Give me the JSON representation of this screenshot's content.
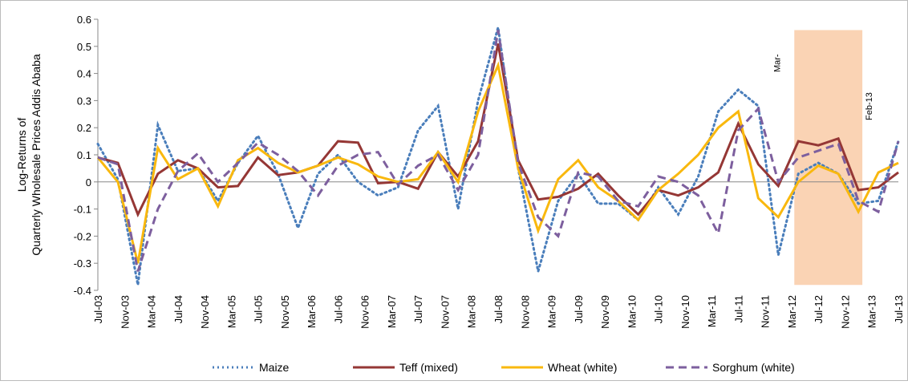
{
  "chart_data": {
    "type": "line",
    "ylabel": [
      "Log-Returns of",
      "Quarterly Wholesale Prices Addis Ababa"
    ],
    "x_tick_labels": [
      "Jul-03",
      "Nov-03",
      "Mar-04",
      "Jul-04",
      "Nov-04",
      "Mar-05",
      "Jul-05",
      "Nov-05",
      "Mar-06",
      "Jul-06",
      "Nov-06",
      "Mar-07",
      "Jul-07",
      "Nov-07",
      "Mar-08",
      "Jul-08",
      "Nov-08",
      "Mar-09",
      "Jul-09",
      "Nov-09",
      "Mar-10",
      "Jul-10",
      "Nov-10",
      "Mar-11",
      "Jul-11",
      "Nov-11",
      "Mar-12",
      "Jul-12",
      "Nov-12",
      "Mar-13",
      "Jul-13"
    ],
    "ylim": [
      -0.4,
      0.6
    ],
    "yticks": [
      -0.4,
      -0.3,
      -0.2,
      -0.1,
      0,
      0.1,
      0.2,
      0.3,
      0.4,
      0.5,
      0.6
    ],
    "legend": "bottom",
    "series": [
      {
        "name": "Maize",
        "color": "#4a7ebb",
        "style": "dotted",
        "values": [
          0.14,
          0.01,
          -0.38,
          0.21,
          0.04,
          0.05,
          -0.07,
          0.07,
          0.17,
          0.03,
          -0.17,
          0.03,
          0.1,
          0,
          -0.05,
          -0.02,
          0.19,
          0.28,
          -0.1,
          0.3,
          0.57,
          0.05,
          -0.33,
          -0.07,
          0.03,
          -0.08,
          -0.08,
          -0.14,
          -0.02,
          -0.12,
          0.02,
          0.26,
          0.34,
          0.28,
          -0.27,
          0.03,
          0.07,
          0.03,
          -0.08,
          -0.07,
          0.15
        ]
      },
      {
        "name": "Teff (mixed)",
        "color": "#953735",
        "style": "solid",
        "values": [
          0.09,
          0.07,
          -0.12,
          0.03,
          0.08,
          0.05,
          -0.02,
          -0.015,
          0.09,
          0.025,
          0.035,
          0.06,
          0.15,
          0.145,
          -0.005,
          0,
          -0.025,
          0.11,
          0.02,
          0.15,
          0.51,
          0.08,
          -0.065,
          -0.055,
          -0.025,
          0.03,
          -0.05,
          -0.12,
          -0.03,
          -0.05,
          -0.02,
          0.035,
          0.215,
          0.065,
          -0.015,
          0.15,
          0.135,
          0.16,
          -0.03,
          -0.02,
          0.035
        ]
      },
      {
        "name": "Wheat (white)",
        "color": "#f9b80e",
        "style": "solid",
        "values": [
          0.09,
          0.0,
          -0.3,
          0.125,
          0.01,
          0.05,
          -0.09,
          0.08,
          0.125,
          0.07,
          0.035,
          0.06,
          0.09,
          0.065,
          0.02,
          0,
          0.01,
          0.11,
          0,
          0.26,
          0.43,
          0.05,
          -0.18,
          0.01,
          0.08,
          -0.02,
          -0.07,
          -0.14,
          -0.03,
          0.03,
          0.1,
          0.2,
          0.26,
          -0.06,
          -0.13,
          0.0,
          0.06,
          0.03,
          -0.11,
          0.035,
          0.07
        ]
      },
      {
        "name": "Sorghum (white)",
        "color": "#7d5f9e",
        "style": "dashed",
        "values": [
          0.09,
          0.065,
          -0.33,
          -0.1,
          0.04,
          0.105,
          0.0,
          0.07,
          0.145,
          0.1,
          0.04,
          -0.05,
          0.06,
          0.1,
          0.11,
          -0.01,
          0.06,
          0.1,
          -0.03,
          0.1,
          0.56,
          0.07,
          -0.13,
          -0.2,
          0.035,
          0.02,
          -0.07,
          -0.09,
          0.02,
          0.0,
          -0.05,
          -0.19,
          0.19,
          0.27,
          0.0,
          0.09,
          0.115,
          0.14,
          -0.07,
          -0.11,
          0.15
        ]
      }
    ],
    "highlight": {
      "from": 34.8,
      "to": 38.2,
      "ylim": [
        -0.38,
        0.56
      ],
      "color": "#fad3b4",
      "labels": [
        "Mar-",
        "Feb-13"
      ]
    }
  }
}
